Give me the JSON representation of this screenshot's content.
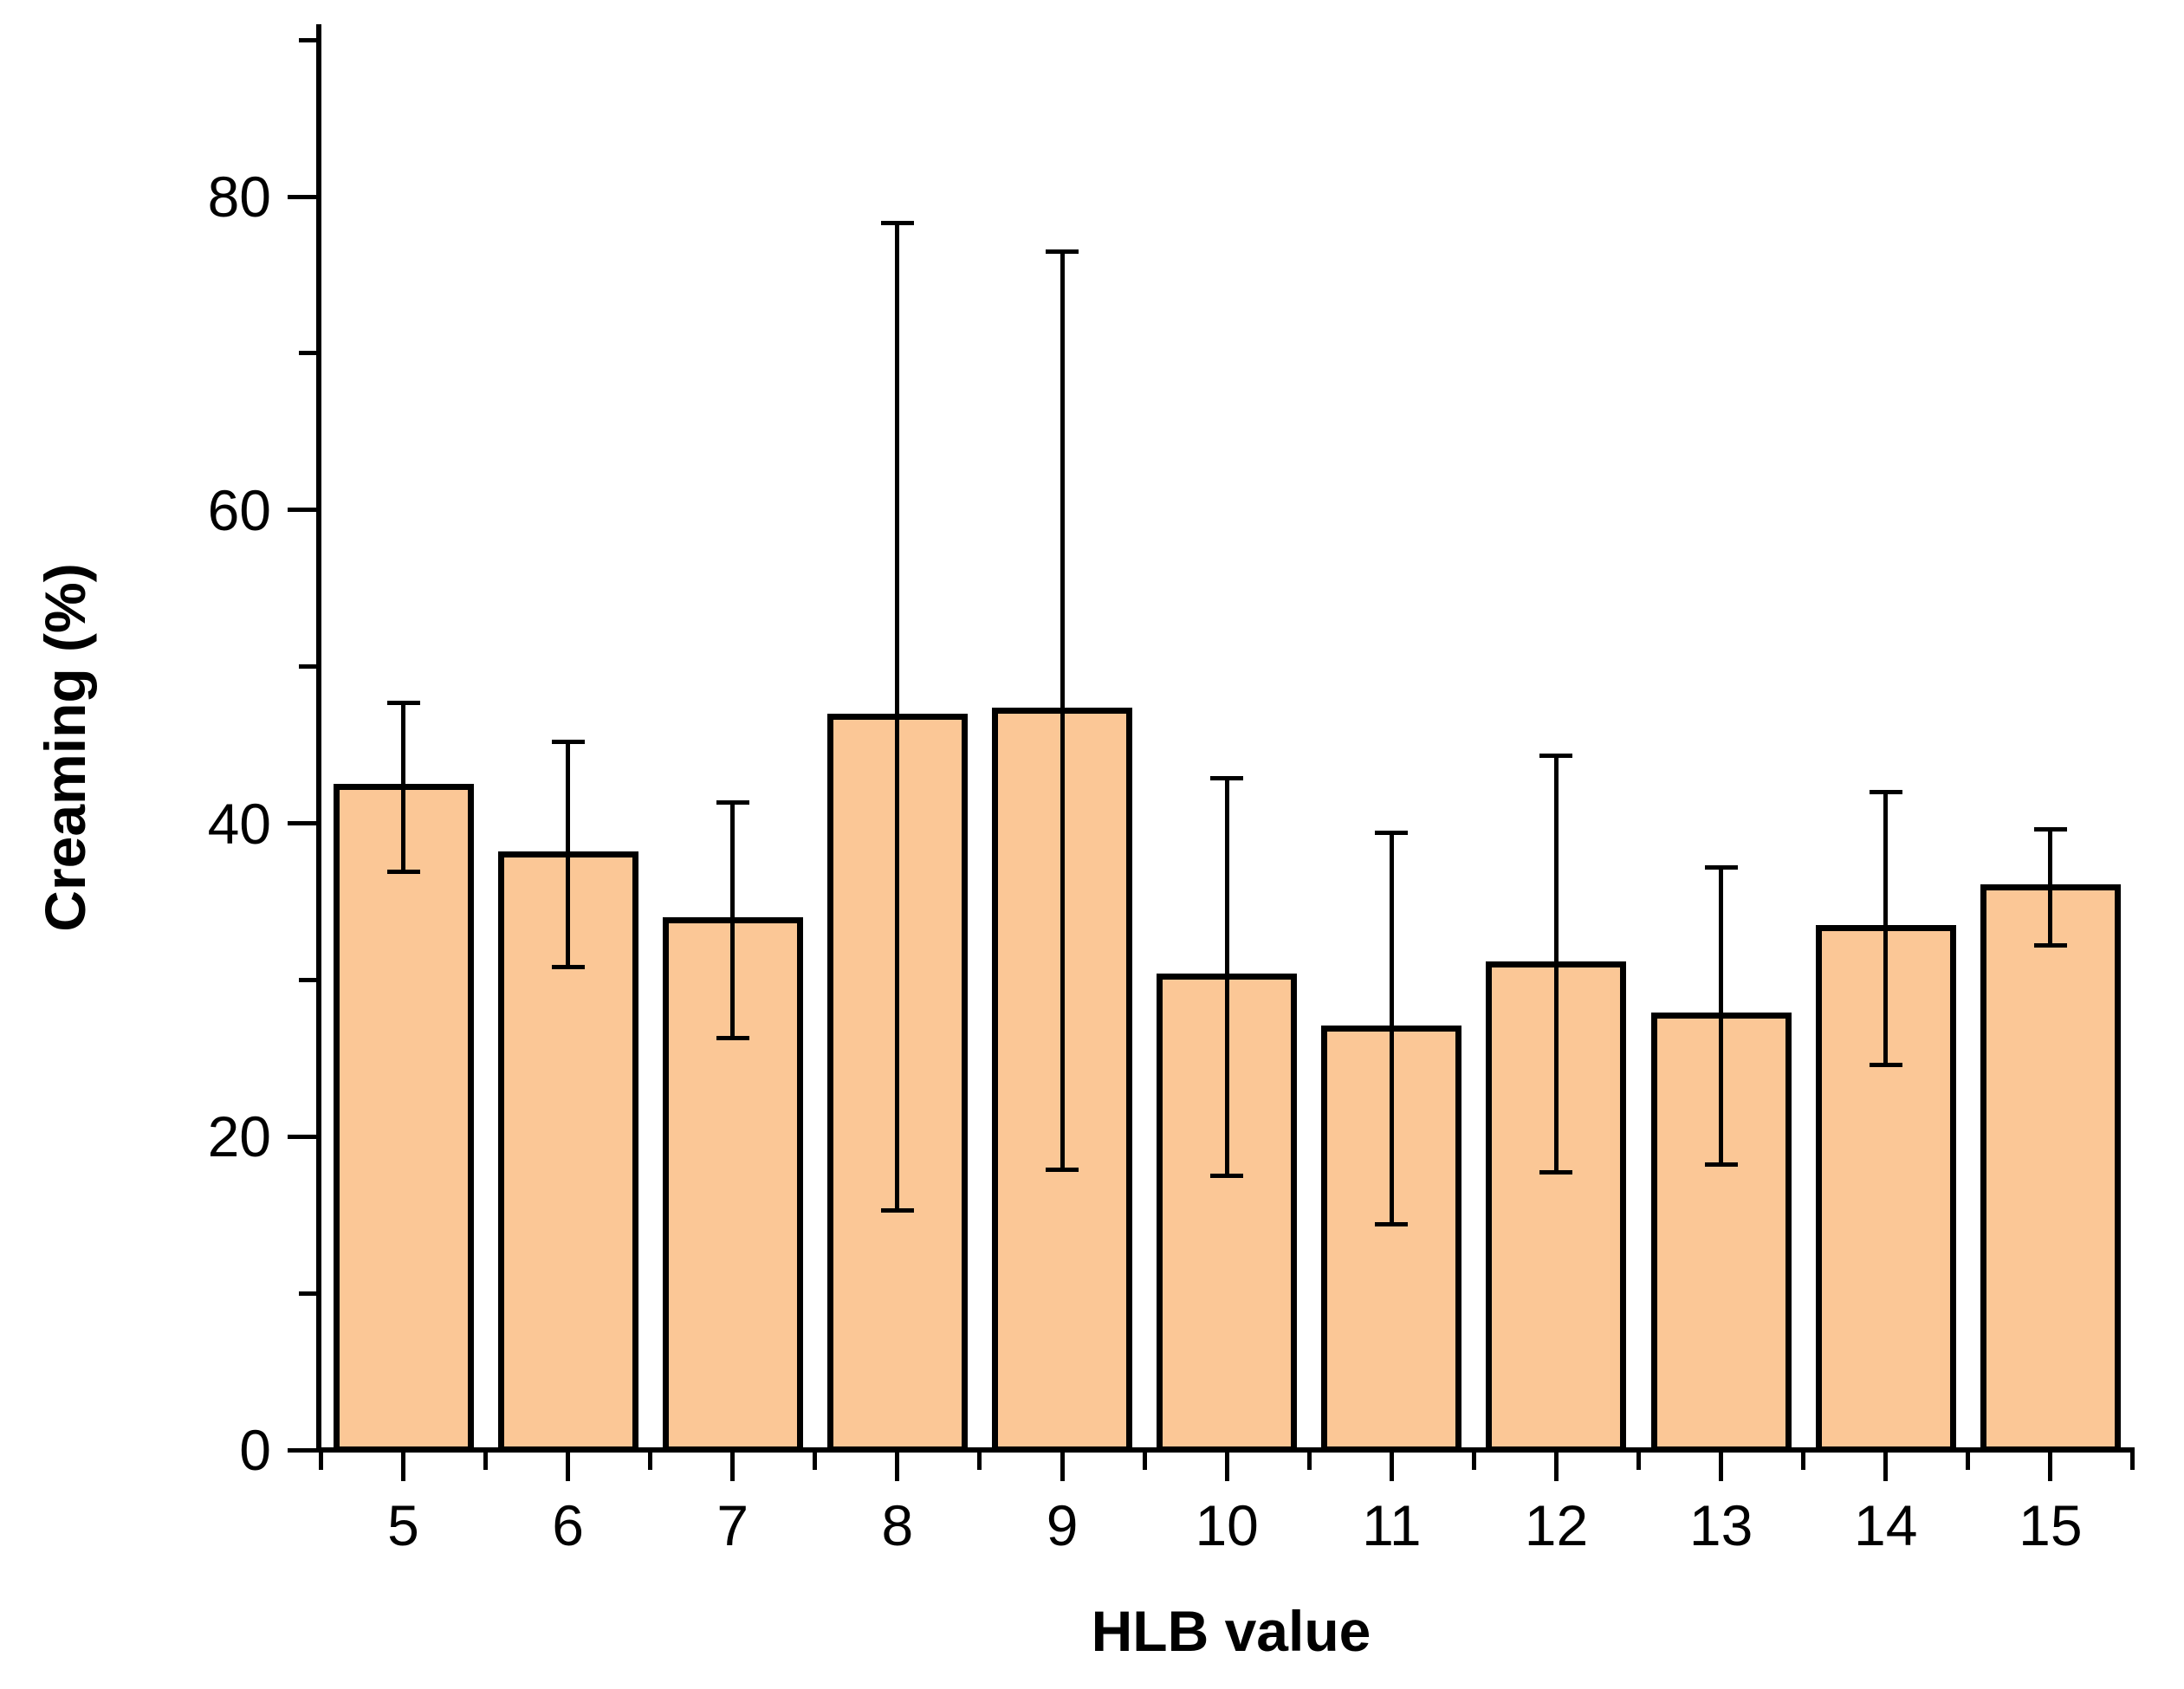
{
  "chart_data": {
    "type": "bar",
    "title": "",
    "xlabel": "HLB value",
    "ylabel": "Creaming (%)",
    "categories": [
      5,
      6,
      7,
      8,
      9,
      10,
      11,
      12,
      13,
      14,
      15
    ],
    "series": [
      {
        "name": "Creaming",
        "values": [
          42.3,
          38.0,
          33.8,
          46.8,
          47.2,
          30.2,
          26.9,
          31.0,
          27.7,
          33.3,
          35.9
        ],
        "errors": [
          5.4,
          7.2,
          7.5,
          31.5,
          29.3,
          12.7,
          12.5,
          13.3,
          9.5,
          8.7,
          3.7
        ]
      }
    ],
    "ylim": [
      0,
      91
    ],
    "yticks_major": [
      0,
      20,
      40,
      60,
      80
    ],
    "yticks_minor": [
      10,
      30,
      50,
      70,
      90
    ],
    "grid": false,
    "legend": "none",
    "error_bar_style": "plus-minus-with-caps",
    "colors": {
      "bar_fill": "#FBC796",
      "bar_border": "#000000",
      "axis": "#000000",
      "text": "#000000",
      "background": "#FFFFFF"
    }
  }
}
